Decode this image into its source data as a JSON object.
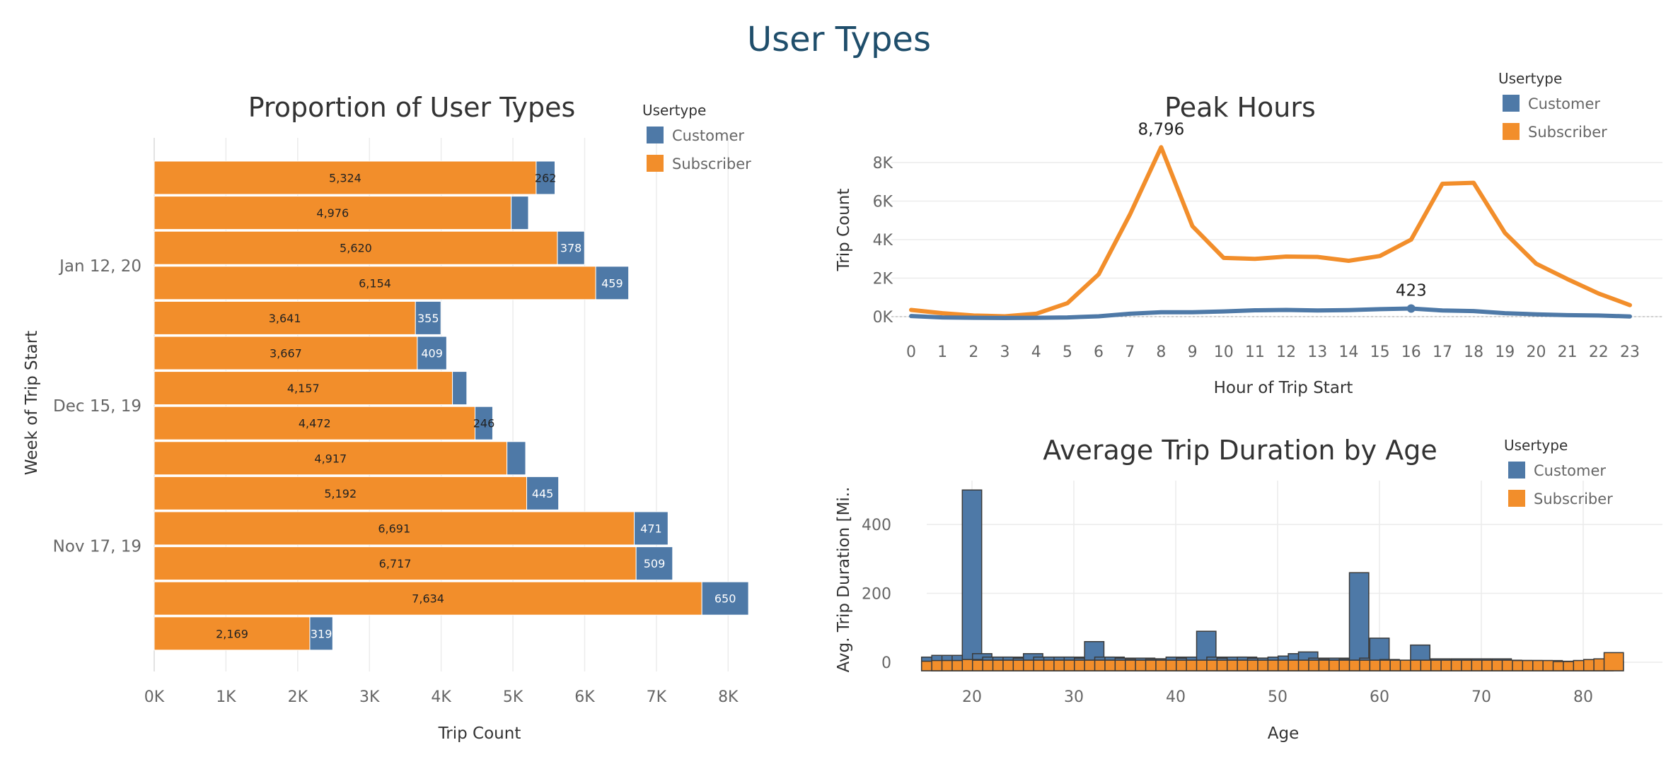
{
  "dashboard": {
    "title": "User Types"
  },
  "colors": {
    "customer": "#4e79a7",
    "subscriber": "#f28e2b",
    "title": "#1f4e6b",
    "text": "#333333",
    "axis": "#666666"
  },
  "chart_data": [
    {
      "id": "proportion",
      "type": "bar",
      "orientation": "horizontal",
      "stacked": true,
      "title": "Proportion of User Types",
      "xlabel": "Trip Count",
      "ylabel": "Week of Trip Start",
      "xlim": [
        0,
        8500
      ],
      "x_ticks": [
        "0K",
        "1K",
        "2K",
        "3K",
        "4K",
        "5K",
        "6K",
        "7K",
        "8K"
      ],
      "y_tick_labels": [
        {
          "label": "Jan 12, 20",
          "row": 3
        },
        {
          "label": "Dec 15, 19",
          "row": 7
        },
        {
          "label": "Nov 17, 19",
          "row": 11
        }
      ],
      "legend": {
        "title": "Usertype",
        "position": "top-right",
        "entries": [
          "Customer",
          "Subscriber"
        ]
      },
      "series": [
        {
          "name": "Subscriber",
          "values": [
            5324,
            4976,
            5620,
            6154,
            3641,
            3667,
            4157,
            4472,
            4917,
            5192,
            6691,
            6717,
            7634,
            2169
          ],
          "labels": [
            "5,324",
            "4,976",
            "5,620",
            "6,154",
            "3,641",
            "3,667",
            "4,157",
            "4,472",
            "4,917",
            "5,192",
            "6,691",
            "6,717",
            "7,634",
            "2,169"
          ]
        },
        {
          "name": "Customer",
          "values": [
            262,
            240,
            378,
            459,
            355,
            409,
            200,
            246,
            260,
            445,
            471,
            509,
            650,
            319
          ],
          "labels": [
            "262",
            "",
            "378",
            "459",
            "355",
            "409",
            "",
            "246",
            "",
            "445",
            "471",
            "509",
            "650",
            "319"
          ]
        }
      ]
    },
    {
      "id": "peak_hours",
      "type": "line",
      "title": "Peak Hours",
      "xlabel": "Hour of Trip Start",
      "ylabel": "Trip Count",
      "ylim": [
        0,
        9000
      ],
      "y_ticks": [
        "0K",
        "2K",
        "4K",
        "6K",
        "8K"
      ],
      "x": [
        0,
        1,
        2,
        3,
        4,
        5,
        6,
        7,
        8,
        9,
        10,
        11,
        12,
        13,
        14,
        15,
        16,
        17,
        18,
        19,
        20,
        21,
        22,
        23
      ],
      "legend": {
        "title": "Usertype",
        "position": "top-right",
        "entries": [
          "Customer",
          "Subscriber"
        ]
      },
      "series": [
        {
          "name": "Subscriber",
          "values": [
            350,
            180,
            60,
            20,
            150,
            700,
            2200,
            5300,
            8796,
            4700,
            3050,
            3000,
            3120,
            3100,
            2900,
            3150,
            4000,
            6900,
            6950,
            4350,
            2750,
            1950,
            1200,
            600
          ]
        },
        {
          "name": "Customer",
          "values": [
            30,
            -40,
            -60,
            -70,
            -60,
            -40,
            20,
            150,
            230,
            230,
            270,
            330,
            350,
            320,
            340,
            390,
            423,
            320,
            290,
            180,
            120,
            80,
            60,
            10
          ]
        }
      ],
      "annotations": [
        {
          "series": "Subscriber",
          "x": 8,
          "text": "8,796"
        },
        {
          "series": "Customer",
          "x": 16,
          "text": "423"
        }
      ]
    },
    {
      "id": "duration_by_age",
      "type": "bar",
      "title": "Average Trip Duration by Age",
      "xlabel": "Age",
      "ylabel": "Avg. Trip Duration [Mi..",
      "ylim": [
        -15,
        520
      ],
      "xlim": [
        13,
        85
      ],
      "x_ticks": [
        "20",
        "30",
        "40",
        "50",
        "60",
        "70",
        "80"
      ],
      "y_ticks": [
        "0",
        "200",
        "400"
      ],
      "legend": {
        "title": "Usertype",
        "position": "top-right",
        "entries": [
          "Customer",
          "Subscriber"
        ]
      },
      "series": [
        {
          "name": "Customer",
          "x": [
            16,
            17,
            18,
            19,
            20,
            21,
            22,
            23,
            24,
            25,
            26,
            27,
            28,
            29,
            30,
            31,
            32,
            33,
            34,
            35,
            36,
            37,
            38,
            39,
            40,
            41,
            42,
            43,
            44,
            45,
            46,
            47,
            48,
            49,
            50,
            51,
            52,
            53,
            54,
            55,
            56,
            57,
            58,
            59,
            60,
            61,
            62,
            63,
            64,
            65,
            66,
            67,
            68,
            69,
            70,
            71,
            72,
            73,
            74,
            75,
            76,
            77,
            78,
            79,
            80,
            81,
            82,
            83
          ],
          "values": [
            15,
            20,
            20,
            20,
            500,
            25,
            15,
            15,
            15,
            12,
            25,
            15,
            15,
            15,
            15,
            12,
            60,
            15,
            15,
            12,
            10,
            12,
            10,
            10,
            15,
            12,
            15,
            90,
            15,
            12,
            15,
            15,
            12,
            12,
            15,
            18,
            25,
            30,
            12,
            10,
            12,
            10,
            260,
            12,
            70,
            8,
            5,
            5,
            50,
            5,
            10,
            5,
            10,
            5,
            10,
            5,
            10,
            5,
            5,
            5,
            2,
            3,
            3,
            2,
            5,
            5,
            6,
            2
          ]
        },
        {
          "name": "Subscriber",
          "x": [
            16,
            17,
            18,
            19,
            20,
            21,
            22,
            23,
            24,
            25,
            26,
            27,
            28,
            29,
            30,
            31,
            32,
            33,
            34,
            35,
            36,
            37,
            38,
            39,
            40,
            41,
            42,
            43,
            44,
            45,
            46,
            47,
            48,
            49,
            50,
            51,
            52,
            53,
            54,
            55,
            56,
            57,
            58,
            59,
            60,
            61,
            62,
            63,
            64,
            65,
            66,
            67,
            68,
            69,
            70,
            71,
            72,
            73,
            74,
            75,
            76,
            77,
            78,
            79,
            80,
            81,
            82,
            83
          ],
          "values": [
            3,
            5,
            5,
            5,
            8,
            6,
            6,
            6,
            6,
            6,
            6,
            6,
            6,
            6,
            6,
            6,
            6,
            6,
            6,
            6,
            6,
            6,
            6,
            6,
            6,
            6,
            6,
            6,
            6,
            6,
            6,
            6,
            6,
            6,
            6,
            6,
            6,
            6,
            6,
            6,
            6,
            6,
            6,
            6,
            6,
            6,
            6,
            6,
            6,
            6,
            6,
            6,
            6,
            6,
            6,
            6,
            6,
            6,
            5,
            5,
            5,
            5,
            2,
            2,
            5,
            8,
            10,
            28
          ]
        }
      ]
    }
  ]
}
